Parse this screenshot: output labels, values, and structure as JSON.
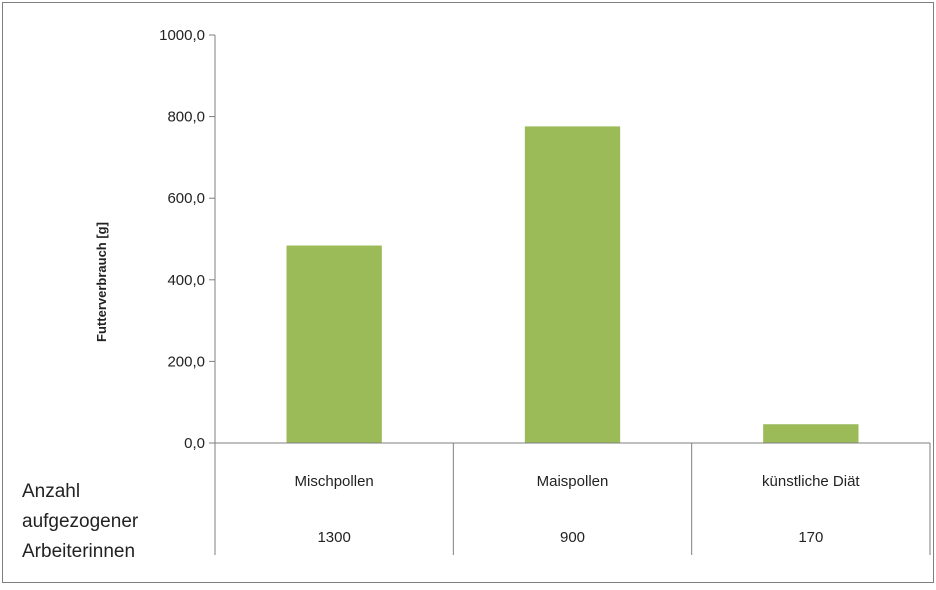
{
  "chart_data": {
    "type": "bar",
    "ylabel": "Futterverbrauch [g]",
    "ylim": [
      0,
      1000
    ],
    "yticks": [
      "0,0",
      "200,0",
      "400,0",
      "600,0",
      "800,0",
      "1000,0"
    ],
    "categories": [
      "Mischpollen",
      "Maispollen",
      "künstliche Diät"
    ],
    "values": [
      484,
      776,
      46
    ],
    "bar_color": "#9bbb59",
    "row_label_lines": [
      "Anzahl",
      "aufgezogener",
      "Arbeiterinnen"
    ],
    "row_values": [
      "1300",
      "900",
      "170"
    ],
    "grid": false
  }
}
